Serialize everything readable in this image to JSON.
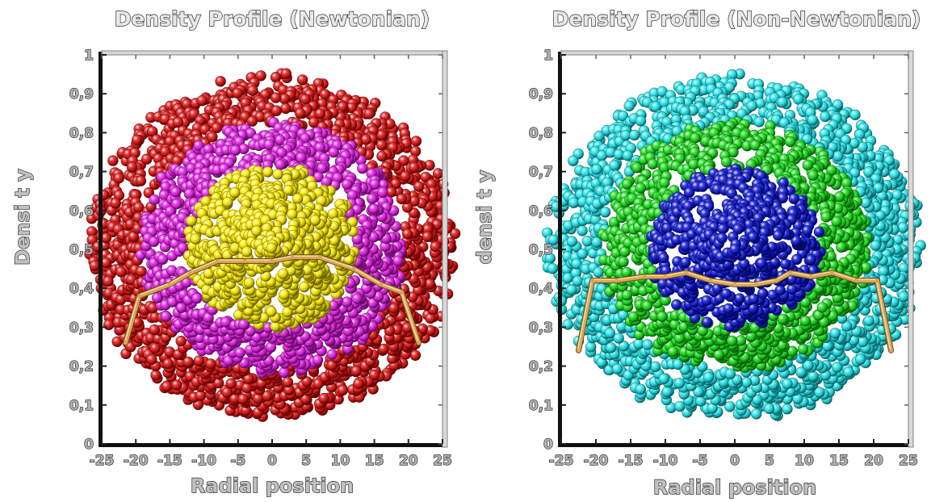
{
  "chart_data": [
    {
      "type": "line",
      "title": "Density Profile (Newtonian)",
      "xlabel": "Radial position",
      "ylabel": "Densi t y",
      "xlim": [
        -25,
        25
      ],
      "ylim": [
        0,
        1
      ],
      "x_ticks": [
        "-25",
        "-20",
        "-15",
        "-10",
        "-5",
        "0",
        "5",
        "10",
        "15",
        "20",
        "25"
      ],
      "y_ticks": [
        "0",
        "0,1",
        "0,2",
        "0,3",
        "0,4",
        "0,5",
        "0,6",
        "0,7",
        "0,8",
        "0,9",
        "1"
      ],
      "series": [
        {
          "x": [
            -21.5,
            -19.5,
            -15,
            -12,
            -8,
            -4,
            0,
            3,
            7,
            12,
            16,
            19,
            21.5
          ],
          "y": [
            0.26,
            0.38,
            0.41,
            0.44,
            0.47,
            0.47,
            0.47,
            0.48,
            0.48,
            0.45,
            0.41,
            0.39,
            0.26
          ]
        }
      ],
      "particle_layers": [
        {
          "color": "#ffee00",
          "radius_fraction": 0.47
        },
        {
          "color": "#e81ee8",
          "radius_fraction": 0.72
        },
        {
          "color": "#e01010",
          "radius_fraction": 1.0
        }
      ],
      "particle_disk": {
        "center_x": 0,
        "center_y": 0.505,
        "radius_x": 26.5,
        "radius_y": 0.44
      }
    },
    {
      "type": "line",
      "title": "Density Profile (Non-Newtonian)",
      "xlabel": "Radial position",
      "ylabel": "densi t y",
      "xlim": [
        -25,
        25
      ],
      "ylim": [
        0,
        1
      ],
      "x_ticks": [
        "-25",
        "-20",
        "-15",
        "-10",
        "-5",
        "0",
        "5",
        "10",
        "15",
        "20",
        "25"
      ],
      "y_ticks": [
        "0",
        "0,1",
        "0,2",
        "0,3",
        "0,4",
        "0,5",
        "0,6",
        "0,7",
        "0,8",
        "0,9",
        "1"
      ],
      "series": [
        {
          "x": [
            -22.5,
            -20.5,
            -17,
            -13,
            -10,
            -7,
            -3.5,
            0,
            3,
            6,
            8,
            11,
            14,
            17.5,
            20.5,
            22.5
          ],
          "y": [
            0.24,
            0.42,
            0.42,
            0.43,
            0.43,
            0.44,
            0.42,
            0.41,
            0.41,
            0.42,
            0.44,
            0.43,
            0.44,
            0.42,
            0.42,
            0.24
          ]
        }
      ],
      "particle_layers": [
        {
          "color": "#0a14d8",
          "radius_fraction": 0.46
        },
        {
          "color": "#18e018",
          "radius_fraction": 0.72
        },
        {
          "color": "#22e8ee",
          "radius_fraction": 1.0
        }
      ],
      "particle_disk": {
        "center_x": 0,
        "center_y": 0.505,
        "radius_x": 26.5,
        "radius_y": 0.44
      }
    }
  ],
  "colors": {
    "title_text": "#e8e8e8",
    "label_text": "#c0c0c0",
    "curve": "#d9a557",
    "curve_highlight": "#f5d9a0",
    "axis_frame": "#808080",
    "axis_frame_light": "#d8d8d8"
  }
}
